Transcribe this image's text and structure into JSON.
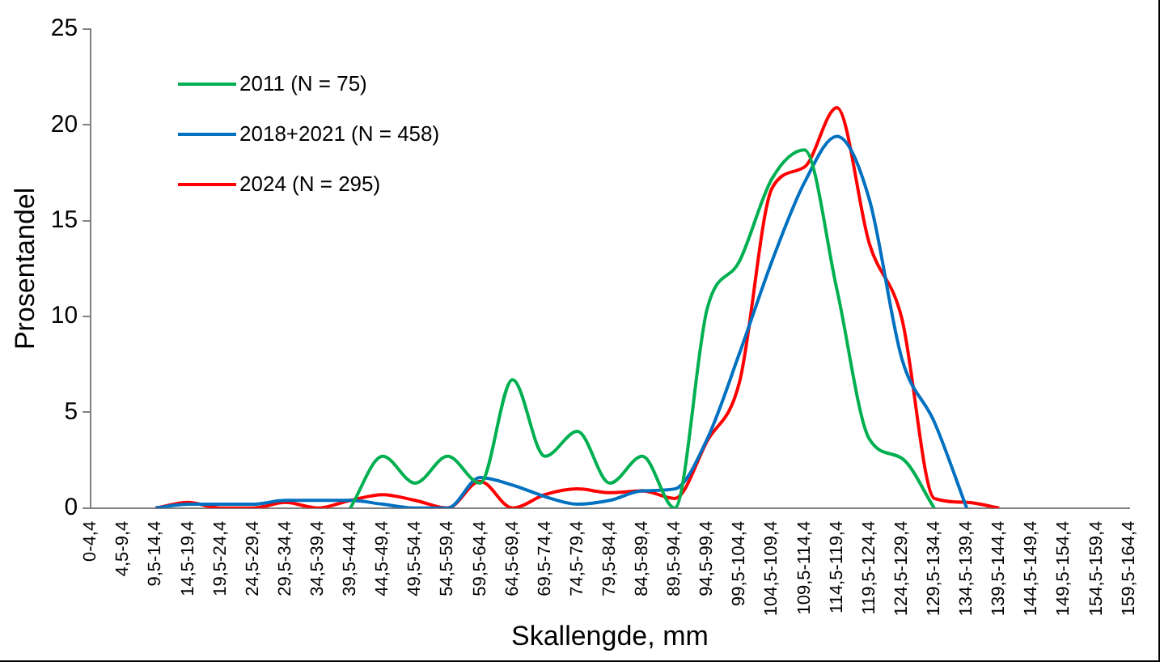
{
  "chart_data": {
    "type": "line",
    "xlabel": "Skallengde, mm",
    "ylabel": "Prosentandel",
    "categories": [
      "0-4,4",
      "4,5-9,4",
      "9,5-14,4",
      "14,5-19,4",
      "19,5-24,4",
      "24,5-29,4",
      "29,5-34,4",
      "34,5-39,4",
      "39,5-44,4",
      "44,5-49,4",
      "49,5-54,4",
      "54,5-59,4",
      "59,5-64,4",
      "64,5-69,4",
      "69,5-74,4",
      "74,5-79,4",
      "79,5-84,4",
      "84,5-89,4",
      "89,5-94,4",
      "94,5-99,4",
      "99,5-104,4",
      "104,5-109,4",
      "109,5-114,4",
      "114,5-119,4",
      "119,5-124,4",
      "124,5-129,4",
      "129,5-134,4",
      "134,5-139,4",
      "139,5-144,4",
      "144,5-149,4",
      "149,5-154,4",
      "154,5-159,4",
      "159,5-164,4"
    ],
    "series": [
      {
        "name": "2011 (N = 75)",
        "color": "#00b050",
        "values": [
          null,
          null,
          null,
          null,
          null,
          null,
          null,
          null,
          0,
          2.7,
          1.3,
          2.7,
          1.3,
          6.7,
          2.7,
          4.0,
          1.3,
          2.7,
          0,
          10.4,
          12.9,
          17.2,
          18.7,
          11.4,
          3.6,
          2.6,
          0,
          null,
          null,
          null,
          null,
          null,
          null
        ]
      },
      {
        "name": "2018+2021 (N = 458)",
        "color": "#0070c0",
        "values": [
          null,
          null,
          0,
          0.2,
          0.2,
          0.2,
          0.4,
          0.4,
          0.4,
          0.2,
          0,
          0,
          1.6,
          1.2,
          0.6,
          0.2,
          0.4,
          0.9,
          1.0,
          3.6,
          8.1,
          12.9,
          17.0,
          19.4,
          16.1,
          7.8,
          4.5,
          0,
          null,
          null,
          null,
          null,
          null
        ]
      },
      {
        "name": "2024 (N = 295)",
        "color": "#ff0000",
        "values": [
          null,
          null,
          0,
          0.3,
          0,
          0,
          0.3,
          0,
          0.4,
          0.7,
          0.4,
          0,
          1.4,
          0,
          0.7,
          1.0,
          0.8,
          0.9,
          0.5,
          3.5,
          6.6,
          16.7,
          17.8,
          20.9,
          13.8,
          9.9,
          0.5,
          0.3,
          0,
          null,
          null,
          null,
          null
        ]
      }
    ],
    "ylim": [
      0,
      25
    ],
    "yticks": [
      0,
      5,
      10,
      15,
      20,
      25
    ],
    "grid": false,
    "legend": "top left",
    "marker": "none",
    "line_style": "solid"
  }
}
